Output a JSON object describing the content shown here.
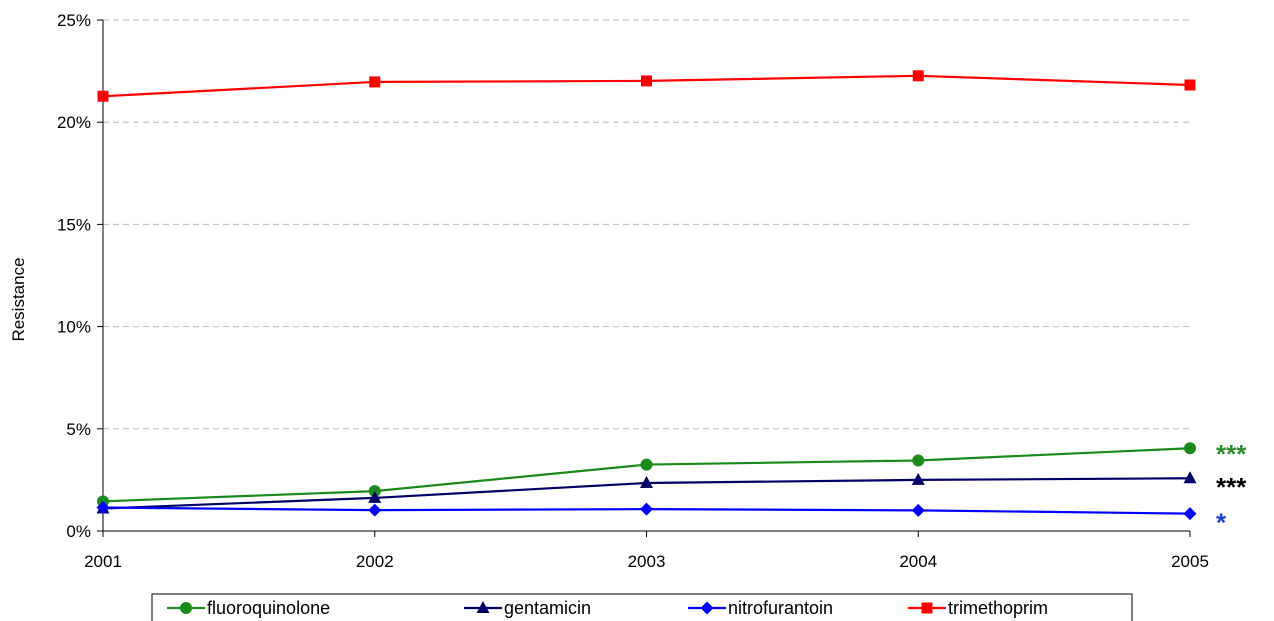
{
  "chart_data": {
    "type": "line",
    "title": "",
    "xlabel": "",
    "ylabel": "Resistance",
    "x": [
      "2001",
      "2002",
      "2003",
      "2004",
      "2005"
    ],
    "ylim": [
      0,
      0.25
    ],
    "yticks": [
      {
        "value": 0.0,
        "label": "0%"
      },
      {
        "value": 0.05,
        "label": "5%"
      },
      {
        "value": 0.1,
        "label": "10%"
      },
      {
        "value": 0.15,
        "label": "15%"
      },
      {
        "value": 0.2,
        "label": "20%"
      },
      {
        "value": 0.25,
        "label": "25%"
      }
    ],
    "grid": true,
    "legend_position": "bottom",
    "series": [
      {
        "name": "fluoroquinolone",
        "color": "#1a8a1a",
        "marker": "circle",
        "values": [
          0.0145,
          0.0195,
          0.0325,
          0.0345,
          0.0405
        ],
        "significance": "***",
        "significance_color": "#2e8b2e"
      },
      {
        "name": "gentamicin",
        "color": "#000066",
        "marker": "triangle",
        "values": [
          0.011,
          0.0162,
          0.0235,
          0.025,
          0.0258
        ],
        "significance": "***",
        "significance_color": "#000000"
      },
      {
        "name": "nitrofurantoin",
        "color": "#0000ff",
        "marker": "diamond",
        "values": [
          0.0115,
          0.0102,
          0.0107,
          0.0101,
          0.0085
        ],
        "significance": "*",
        "significance_color": "#1f3fd0"
      },
      {
        "name": "trimethoprim",
        "color": "#ff0000",
        "marker": "square",
        "values": [
          0.2127,
          0.2197,
          0.2202,
          0.2227,
          0.2182
        ],
        "significance": "",
        "significance_color": "#ff0000"
      }
    ]
  }
}
